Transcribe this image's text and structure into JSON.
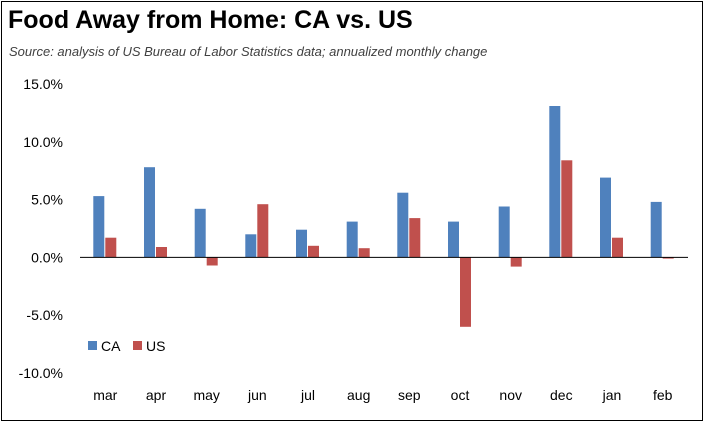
{
  "title": "Food Away from Home:  CA vs. US",
  "subtitle": "Source:  analysis of US Bureau of Labor Statistics data; annualized monthly change",
  "colors": {
    "CA": "#4f81bd",
    "US": "#c0504d",
    "zero_line": "#000000",
    "axis": "#000000"
  },
  "chart_data": {
    "type": "bar",
    "title": "Food Away from Home:  CA vs. US",
    "subtitle": "Source:  analysis of US Bureau of Labor Statistics data; annualized monthly change",
    "categories": [
      "mar",
      "apr",
      "may",
      "jun",
      "jul",
      "aug",
      "sep",
      "oct",
      "nov",
      "dec",
      "jan",
      "feb"
    ],
    "series": [
      {
        "name": "CA",
        "values": [
          5.3,
          7.8,
          4.2,
          2.0,
          2.4,
          3.1,
          5.6,
          3.1,
          4.4,
          13.1,
          6.9,
          4.8
        ]
      },
      {
        "name": "US",
        "values": [
          1.7,
          0.9,
          -0.7,
          4.6,
          1.0,
          0.8,
          3.4,
          -6.0,
          -0.8,
          8.4,
          1.7,
          -0.1
        ]
      }
    ],
    "ylim": [
      -10,
      15
    ],
    "yticks": [
      "15.0%",
      "10.0%",
      "5.0%",
      "0.0%",
      "-5.0%",
      "-10.0%"
    ],
    "ytick_values": [
      15,
      10,
      5,
      0,
      -5,
      -10
    ],
    "xlabel": "",
    "ylabel": "",
    "grid": false,
    "legend_position": "lower-left"
  }
}
